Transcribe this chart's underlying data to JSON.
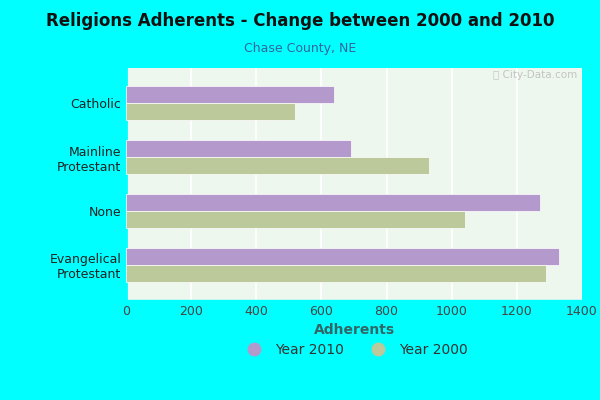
{
  "title": "Religions Adherents - Change between 2000 and 2010",
  "subtitle": "Chase County, NE",
  "xlabel": "Adherents",
  "categories": [
    "Catholic",
    "Mainline\nProtestant",
    "None",
    "Evangelical\nProtestant"
  ],
  "year2010": [
    640,
    690,
    1270,
    1330
  ],
  "year2000": [
    520,
    930,
    1040,
    1290
  ],
  "color2010": "#b399cc",
  "color2000": "#bcc99b",
  "background_outer": "#00ffff",
  "background_inner": "#eef7ee",
  "xlim": [
    0,
    1400
  ],
  "xticks": [
    0,
    200,
    400,
    600,
    800,
    1000,
    1200,
    1400
  ],
  "title_fontsize": 12,
  "subtitle_fontsize": 9,
  "xlabel_fontsize": 10,
  "tick_fontsize": 9,
  "legend_fontsize": 10
}
